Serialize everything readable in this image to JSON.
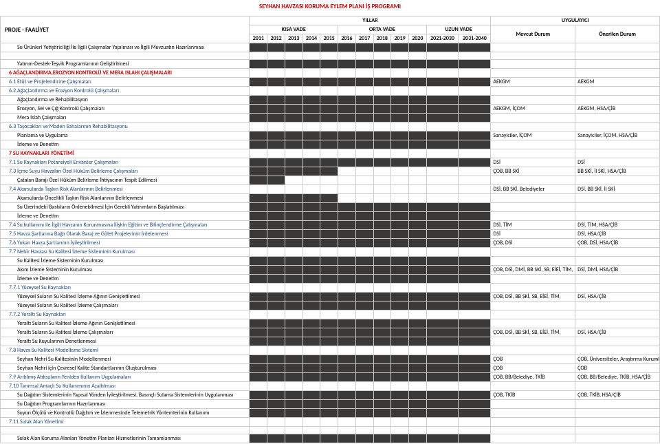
{
  "title": "SEYHAN HAVZASI KORUMA EYLEM PLANI İŞ PROGRAMI",
  "header": {
    "proje": "PROJE - FAALİYET",
    "yillar": "YILLAR",
    "kv": "KISA VADE",
    "ov": "ORTA VADE",
    "uv": "UZUN VADE",
    "uyg": "UYGULAYICI",
    "md": "Mevcut Durum",
    "od": "Önerilen Durum",
    "years": [
      "2011",
      "2012",
      "2013",
      "2014",
      "2015",
      "2016",
      "2017",
      "2018",
      "2019",
      "2020",
      "2021-2030",
      "2031-2040"
    ]
  },
  "rows": [
    {
      "t": "Su Ürünleri Yetiştiriciliği İle İlgili Çalışmalar Yapılması ve İlgili Mevzuatın Hazırlanması",
      "cls": "plain indent2",
      "bar": [
        0,
        12
      ],
      "md": "",
      "od": ""
    },
    {
      "t": "",
      "cls": "plain",
      "bar": null,
      "md": "",
      "od": ""
    },
    {
      "t": "Yatırım-Destek-Teşvik Programlarının Geliştirilmesi",
      "cls": "plain indent2",
      "bar": [
        0,
        12
      ],
      "md": "",
      "od": ""
    },
    {
      "t": "6 AĞAÇLANDIRMA,EROZYON KONTROLÜ VE MERA ISLAHI ÇALIŞMALARI",
      "cls": "section indent1",
      "bar": null,
      "md": "",
      "od": ""
    },
    {
      "t": "6.1 Etüt ve Projelendirme Çalışmaları",
      "cls": "sub indent1",
      "bar": [
        0,
        12
      ],
      "md": "AEKGM",
      "od": "AEKGM"
    },
    {
      "t": "6.2 Ağaçlandırma ve Erozyon Kontrolü Çalışmaları",
      "cls": "sub indent1",
      "bar": null,
      "md": "",
      "od": ""
    },
    {
      "t": "Ağaçlandırma ve Rehabilitasyon",
      "cls": "plain indent2",
      "bar": [
        0,
        12
      ],
      "md": "",
      "od": ""
    },
    {
      "t": "Erozyon, Sel ve Çığ Kontrolü Çalışmaları",
      "cls": "plain indent2",
      "bar": [
        0,
        12
      ],
      "md": "AEKGM, İÇOM",
      "od": "AEKGM, HSA/ÇİB"
    },
    {
      "t": "Mera Islah Çalışmaları",
      "cls": "plain indent2",
      "bar": [
        0,
        12
      ],
      "md": "",
      "od": ""
    },
    {
      "t": "6.3 Taşocakları ve Maden Sahalarının Rehabilitasyonu",
      "cls": "sub indent1",
      "bar": null,
      "md": "",
      "od": ""
    },
    {
      "t": "Planlama ve Uygulama",
      "cls": "plain indent2",
      "bar": [
        0,
        12
      ],
      "md": "Sanayiciler, İÇOM",
      "od": "Sanayiciler, İÇOM, HSA/ÇİB"
    },
    {
      "t": "İzleme ve Denetim",
      "cls": "plain indent2",
      "bar": [
        0,
        12
      ],
      "md": "",
      "od": ""
    },
    {
      "t": "7 SU KAYNAKLARI YÖNETİMİ",
      "cls": "section indent1",
      "bar": null,
      "md": "",
      "od": ""
    },
    {
      "t": "7.1 Su Kaynakları Potansiyeli Envanter Çalışmaları",
      "cls": "sub indent1",
      "bar": [
        0,
        12
      ],
      "md": "DSİ",
      "od": "DSİ"
    },
    {
      "t": "7.3 İçme Suyu Havzaları Özel Hüküm Belirleme Çalışmaları",
      "cls": "sub indent1",
      "bar": [
        0,
        5
      ],
      "md": "ÇOB, BB SKİ",
      "od": "BB SKİ, İl SKİ, HSA/ÇİB"
    },
    {
      "t": "Çatalan Barajı Özel Hüküm Belirleme İhtiyacının Tespit Edilmesi",
      "cls": "plain indent2",
      "bar": [
        0,
        2
      ],
      "md": "",
      "od": ""
    },
    {
      "t": "7.4 Akarsularda Taşkın Risk Alanlarının Belirlenmesi",
      "cls": "sub indent1",
      "bar": null,
      "md": "DSİ, BB SKİ, Belediyeler",
      "od": "DSİ, BB SKİ, İl SKİ"
    },
    {
      "t": "Akarsularda Öncelikli Taşkın Risk Alanlarının Belirlenmesi",
      "cls": "plain indent2",
      "bar": [
        0,
        5
      ],
      "md": "",
      "od": ""
    },
    {
      "t": "Su Üzerindeki Baskıların Önlenebilmesi İçin Gerekli Yatırımların Başlatılması",
      "cls": "plain indent2",
      "bar": [
        0,
        12
      ],
      "md": "",
      "od": ""
    },
    {
      "t": "İzleme ve Denetim",
      "cls": "plain indent2",
      "bar": [
        0,
        12
      ],
      "md": "",
      "od": ""
    },
    {
      "t": "7.4 Su kullanımı ile İlgili Havzanın Korunmasına İlişkin Eğitim ve Bilinçlendirme Çalışmaları",
      "cls": "sub indent1",
      "bar": [
        0,
        12
      ],
      "md": "DSİ, TİM",
      "od": "DSİ, TİM, HSA/ÇİB"
    },
    {
      "t": "7.5 Havza Şartlarına Bağlı Olarak Baraj ve Gölet Projelerinin İrdelenmesi",
      "cls": "sub indent1",
      "bar": [
        0,
        12
      ],
      "md": "DSİ",
      "od": "DSİ, HSA/ÇİB"
    },
    {
      "t": "7.6 Yukarı Havza Şartlarının İyileştirilmesi",
      "cls": "sub indent1",
      "bar": [
        0,
        12
      ],
      "md": "ÇOB, DSİ",
      "od": "ÇOB, DSİ,  HSA/ÇİB"
    },
    {
      "t": "7.7 Nehir Havzası Su Kalitesi İzleme Sisteminin Kurulması",
      "cls": "sub indent1",
      "bar": null,
      "md": "",
      "od": ""
    },
    {
      "t": "Su Kalitesi İzleme Sisteminin Kurulması",
      "cls": "plain indent2",
      "bar": [
        0,
        12
      ],
      "md": "",
      "od": ""
    },
    {
      "t": "Akım İzleme  Sisteminin Kurulması",
      "cls": "plain indent2",
      "bar": [
        0,
        12
      ],
      "md": "ÇOB, DSİ, DMİ, BB SKİ, SB, EİEİ, TİM,",
      "od": "DSİ, DMİ, HSA/ÇİB"
    },
    {
      "t": "İzleme ve Denetim",
      "cls": "plain indent2",
      "bar": [
        0,
        12
      ],
      "md": "",
      "od": ""
    },
    {
      "t": "7.7.1 Yüzeysel Su Kaynakları",
      "cls": "sub indent1",
      "bar": null,
      "md": "",
      "od": ""
    },
    {
      "t": "Yüzeysel Suların Su Kalitesi İzleme Ağının Genişletilmesi",
      "cls": "plain indent2",
      "bar": [
        0,
        12
      ],
      "md": "ÇOB, DSİ, BB SKİ, SB, EİEİ, TİM,",
      "od": "DSİ,  HSA/ÇİB"
    },
    {
      "t": "Yüzeysel Suların Su Kalitesi İzleme Çalışmaları",
      "cls": "plain indent2",
      "bar": [
        0,
        12
      ],
      "md": "",
      "od": ""
    },
    {
      "t": "7.7.2 Yeraltı Su Kaynakları",
      "cls": "sub indent1",
      "bar": null,
      "md": "",
      "od": ""
    },
    {
      "t": "Yeraltı Suların Su Kalitesi İzleme Ağının Genişletilmesi",
      "cls": "plain indent2",
      "bar": [
        0,
        12
      ],
      "md": "",
      "od": ""
    },
    {
      "t": "Yeraltı Suların Su Kalitesi İzleme Çalışmaları",
      "cls": "plain indent2",
      "bar": [
        0,
        12
      ],
      "md": "ÇOB, DSİ, BB SKİ, SB, EİEİ, TİM,",
      "od": "DSİ,  HSA/ÇİB"
    },
    {
      "t": "Yeraltı Su Kuyularının Denetlenmesi",
      "cls": "plain indent2",
      "bar": [
        0,
        12
      ],
      "md": "",
      "od": ""
    },
    {
      "t": "7.8 Havza Su Kalitesi Modelleme Sistemi",
      "cls": "sub indent1",
      "bar": null,
      "md": "",
      "od": ""
    },
    {
      "t": "Seyhan Nehri Su Kalitesinin Modellenmesi",
      "cls": "plain indent2",
      "bar": [
        0,
        12
      ],
      "md": "ÇOB",
      "od": "ÇOB, Üniversiteler, Araştırma Kurumları HSA/ÇİB"
    },
    {
      "t": "Seyhan Nehri için Çevresel Kalite Standartlarının Oluşturulması",
      "cls": "plain indent2",
      "bar": [
        0,
        12
      ],
      "md": "ÇOB",
      "od": "ÇOB"
    },
    {
      "t": "7.9 Arıtılmış Atıksuların Yeniden Kullanım Uygulamaları",
      "cls": "sub indent1",
      "bar": [
        0,
        12
      ],
      "md": "ÇOB, BB/Belediye, TKİB",
      "od": "ÇOB, BB/Belediye, TKİB, HSA/ÇİB"
    },
    {
      "t": "7.10 Tarımsal Amaçlı Su Kullanımının Azaltılması",
      "cls": "sub indent1",
      "bar": null,
      "md": "",
      "od": ""
    },
    {
      "t": "Su Dağıtım Sistemlerinin Yapısal Yönden İyileştirilmesi, Basınçlı Sulama Sistemlerinin Uygulanması",
      "cls": "plain indent2",
      "bar": [
        0,
        12
      ],
      "md": "ÇOB, TKİB",
      "od": "ÇOB, TKİB, HSA/ÇİB"
    },
    {
      "t": "Su Dağıtım Programlarının Hazırlanması",
      "cls": "plain indent2",
      "bar": [
        0,
        12
      ],
      "md": "",
      "od": ""
    },
    {
      "t": "Suyun Ölçülü ve Kontrollü Dağıtım ve İzlenmesinde Telemetrik Yöntemlerinin Kullanımı",
      "cls": "plain indent2",
      "bar": [
        0,
        12
      ],
      "md": "",
      "od": ""
    },
    {
      "t": "7.11 Sulak Alan Yönetimi",
      "cls": "sub indent1",
      "bar": null,
      "md": "",
      "od": ""
    },
    {
      "t": "",
      "cls": "plain",
      "bar": null,
      "md": "",
      "od": ""
    },
    {
      "t": "Sulak Alan Koruma Alanları Yönetim Planları Hizmetlerinin Tamamlanması",
      "cls": "plain indent2",
      "bar": [
        0,
        12
      ],
      "md": "",
      "od": ""
    }
  ]
}
